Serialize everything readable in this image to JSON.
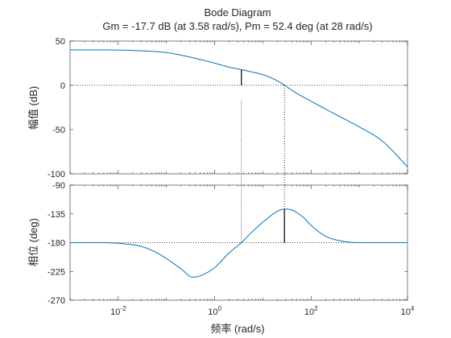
{
  "chart_data": {
    "type": "line",
    "title": "Bode Diagram",
    "subtitle": "Gm = -17.7 dB (at 3.58 rad/s),  Pm = 52.4 deg (at 28 rad/s)",
    "xlabel": "频率  (rad/s)",
    "xscale": "log",
    "xlim": [
      0.001,
      10000
    ],
    "x_ticks": [
      {
        "value": 0.01,
        "base": "10",
        "exp": "-2"
      },
      {
        "value": 1,
        "base": "10",
        "exp": "0"
      },
      {
        "value": 100,
        "base": "10",
        "exp": "2"
      },
      {
        "value": 10000,
        "base": "10",
        "exp": "4"
      }
    ],
    "magnitude": {
      "ylabel": "幅值 (dB)",
      "ylim": [
        -100,
        50
      ],
      "yticks": [
        50,
        0,
        -50,
        -100
      ],
      "series": [
        {
          "x": [
            0.001,
            0.003,
            0.01,
            0.03,
            0.1,
            0.3,
            1,
            2,
            3.58,
            6,
            10,
            20,
            28,
            50,
            100,
            300,
            1000,
            3000,
            10000
          ],
          "y": [
            40,
            40,
            39.8,
            39,
            37,
            32,
            25,
            20.5,
            17.7,
            15,
            12,
            5,
            0,
            -9,
            -18,
            -32,
            -47,
            -63,
            -92
          ]
        }
      ]
    },
    "phase": {
      "ylabel": "相位 (deg)",
      "ylim": [
        -270,
        -90
      ],
      "yticks": [
        -90,
        -135,
        -180,
        -225,
        -270
      ],
      "series": [
        {
          "x": [
            0.001,
            0.003,
            0.01,
            0.03,
            0.06,
            0.1,
            0.2,
            0.35,
            0.5,
            1,
            2,
            3.58,
            6,
            10,
            20,
            28,
            40,
            70,
            100,
            200,
            400,
            1000,
            3000,
            10000
          ],
          "y": [
            -180,
            -180,
            -181,
            -186,
            -195,
            -205,
            -221,
            -234,
            -232,
            -219,
            -196,
            -180,
            -163,
            -148,
            -131,
            -127.6,
            -129,
            -141,
            -153,
            -170,
            -177,
            -180,
            -180,
            -180
          ]
        }
      ]
    },
    "markers": {
      "gain_margin": {
        "frequency": 3.58,
        "value_db": -17.7
      },
      "phase_margin": {
        "frequency": 28,
        "value_deg": 52.4
      }
    },
    "grid": false,
    "colors": {
      "line": "#0072BD",
      "axis": "#262626",
      "marker": "#000000"
    }
  }
}
